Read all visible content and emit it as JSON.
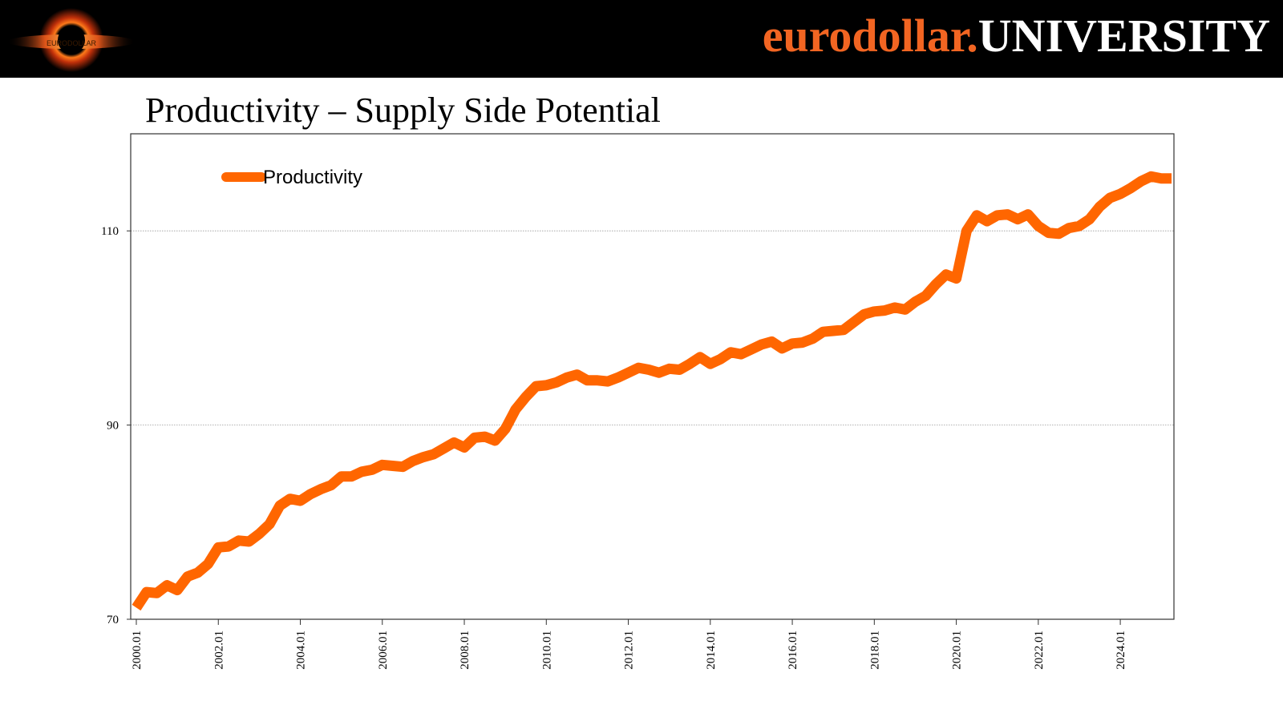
{
  "header": {
    "brand_part1": "eurodollar.",
    "brand_part2": "UNIVERSITY",
    "logo_text": "EURODOLLAR"
  },
  "slide": {
    "title": "Productivity – Supply Side Potential"
  },
  "colors": {
    "accent": "#ff6600",
    "header_bg": "#000000",
    "brand_orange": "#f26522"
  },
  "chart_data": {
    "type": "line",
    "title": "",
    "xlabel": "",
    "ylabel": "",
    "ylim": [
      70,
      120
    ],
    "yticks": [
      {
        "value": 70,
        "label": "70"
      },
      {
        "value": 90,
        "label": "90"
      },
      {
        "value": 110,
        "label": "110"
      }
    ],
    "xlim": [
      0,
      101
    ],
    "xticks": [
      {
        "index": 0,
        "label": "2000.01"
      },
      {
        "index": 8,
        "label": "2002.01"
      },
      {
        "index": 16,
        "label": "2004.01"
      },
      {
        "index": 24,
        "label": "2006.01"
      },
      {
        "index": 32,
        "label": "2008.01"
      },
      {
        "index": 40,
        "label": "2010.01"
      },
      {
        "index": 48,
        "label": "2012.01"
      },
      {
        "index": 56,
        "label": "2014.01"
      },
      {
        "index": 64,
        "label": "2016.01"
      },
      {
        "index": 72,
        "label": "2018.01"
      },
      {
        "index": 80,
        "label": "2020.01"
      },
      {
        "index": 88,
        "label": "2022.01"
      },
      {
        "index": 96,
        "label": "2024.01"
      }
    ],
    "legend_position": "top-left",
    "grid": "horizontal",
    "series": [
      {
        "name": "Productivity",
        "color": "#ff6600",
        "values": [
          71.2,
          72.8,
          72.7,
          73.5,
          73.0,
          74.4,
          74.8,
          75.7,
          77.4,
          77.5,
          78.1,
          78.0,
          78.8,
          79.8,
          81.7,
          82.4,
          82.2,
          82.9,
          83.4,
          83.8,
          84.7,
          84.7,
          85.2,
          85.4,
          85.9,
          85.8,
          85.7,
          86.3,
          86.7,
          87.0,
          87.6,
          88.2,
          87.7,
          88.7,
          88.8,
          88.4,
          89.6,
          91.6,
          92.9,
          94.0,
          94.1,
          94.4,
          94.9,
          95.2,
          94.6,
          94.6,
          94.5,
          94.9,
          95.4,
          95.9,
          95.7,
          95.4,
          95.8,
          95.7,
          96.3,
          97.0,
          96.3,
          96.8,
          97.5,
          97.3,
          97.8,
          98.3,
          98.6,
          97.9,
          98.4,
          98.5,
          98.9,
          99.6,
          99.7,
          99.8,
          100.6,
          101.4,
          101.7,
          101.8,
          102.1,
          101.9,
          102.7,
          103.3,
          104.5,
          105.5,
          105.1,
          110.0,
          111.6,
          111.0,
          111.6,
          111.7,
          111.2,
          111.7,
          110.5,
          109.8,
          109.7,
          110.3,
          110.5,
          111.2,
          112.5,
          113.4,
          113.8,
          114.4,
          115.1,
          115.6,
          115.4,
          115.4
        ]
      }
    ]
  }
}
